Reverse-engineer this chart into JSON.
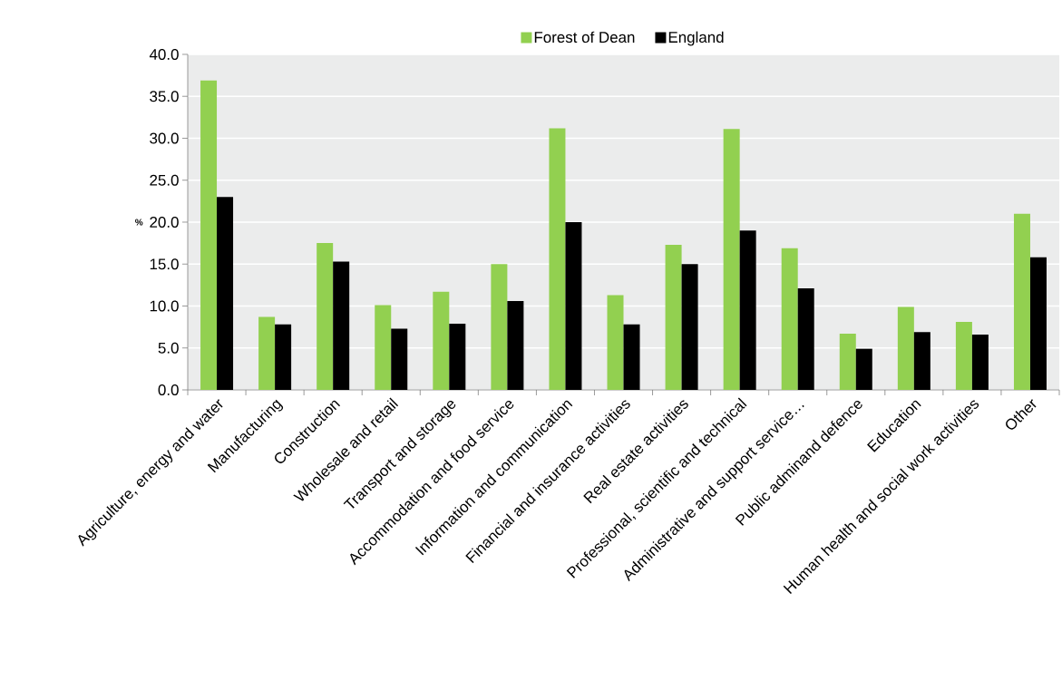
{
  "chart_data": {
    "type": "bar",
    "ylabel": "%",
    "categories": [
      "Agriculture, energy and water",
      "Manufacturing",
      "Construction",
      "Wholesale and retail",
      "Transport and storage",
      "Accommodation and food service",
      "Information and communication",
      "Financial and insurance activities",
      "Real estate activities",
      "Professional, scientific and technical",
      "Administrative and support service…",
      "Public adminand defence",
      "Education",
      "Human health and social work activities",
      "Other"
    ],
    "series": [
      {
        "name": "Forest of Dean",
        "color": "#92d050",
        "values": [
          36.9,
          8.7,
          17.5,
          10.1,
          11.7,
          15.0,
          31.2,
          11.3,
          17.3,
          31.1,
          16.9,
          6.7,
          9.9,
          8.1,
          21.0
        ]
      },
      {
        "name": "England",
        "color": "#000000",
        "values": [
          23.0,
          7.8,
          15.3,
          7.3,
          7.9,
          10.6,
          20.0,
          7.8,
          15.0,
          19.0,
          12.1,
          4.9,
          6.9,
          6.6,
          15.8
        ]
      }
    ],
    "ylim": [
      0,
      40
    ],
    "yticks": [
      {
        "value": 0,
        "label": "0.0"
      },
      {
        "value": 5,
        "label": "5.0"
      },
      {
        "value": 10,
        "label": "10.0"
      },
      {
        "value": 15,
        "label": "15.0"
      },
      {
        "value": 20,
        "label": "20.0"
      },
      {
        "value": 25,
        "label": "25.0"
      },
      {
        "value": 30,
        "label": "30.0"
      },
      {
        "value": 35,
        "label": "35.0"
      },
      {
        "value": 40,
        "label": "40.0"
      }
    ],
    "grid": "y",
    "legend": "top"
  }
}
